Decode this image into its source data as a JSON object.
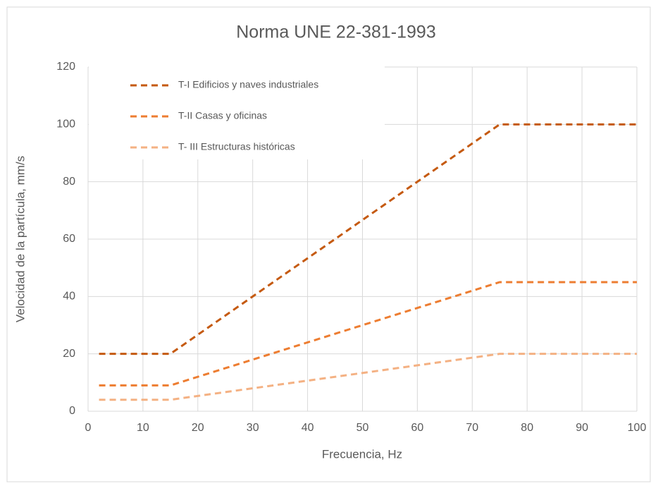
{
  "chart_data": {
    "type": "line",
    "title": "Norma UNE 22-381-1993",
    "x_label": "Frecuencia, Hz",
    "y_label": "Velocidad de la partícula, mm/s",
    "x": [
      2,
      15,
      75,
      100
    ],
    "series": [
      {
        "name": "T-I Edificios y naves industriales",
        "color": "#c55a11",
        "values": [
          20,
          20,
          100,
          100
        ]
      },
      {
        "name": "T-II Casas y oficinas",
        "color": "#ed7d31",
        "values": [
          9,
          9,
          45,
          45
        ]
      },
      {
        "name": "T- III Estructuras históricas",
        "color": "#f4b183",
        "values": [
          4,
          4,
          20,
          20
        ]
      }
    ],
    "xlim": [
      0,
      100
    ],
    "xticks": [
      0,
      10,
      20,
      30,
      40,
      50,
      60,
      70,
      80,
      90,
      100
    ],
    "ylim": [
      0,
      120
    ],
    "yticks": [
      0,
      20,
      40,
      60,
      80,
      100,
      120
    ],
    "grid": true,
    "legend": "top-left",
    "line_style": "dashed"
  }
}
